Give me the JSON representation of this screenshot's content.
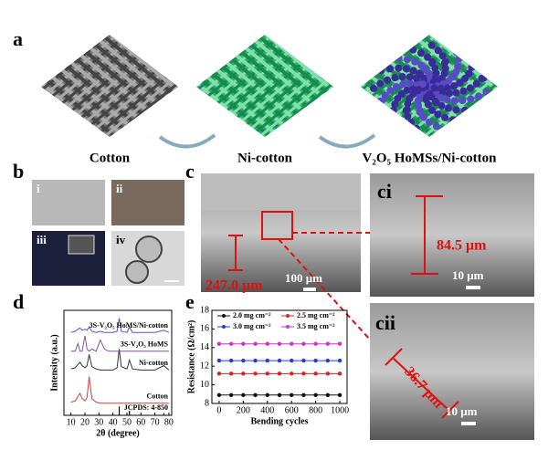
{
  "figure": {
    "a": {
      "label": "a",
      "captions": [
        "Cotton",
        "Ni-cotton",
        "V₂O₅ HoMSs/Ni-cotton"
      ]
    },
    "b": {
      "label": "b",
      "sublabels": [
        "i",
        "ii",
        "iii",
        "iv"
      ]
    },
    "c": {
      "label": "c",
      "thickness": "247.0 μm",
      "scale": "100 μm"
    },
    "ci": {
      "label": "ci",
      "thickness": "84.5 μm",
      "scale": "10 μm"
    },
    "cii": {
      "label": "cii",
      "thickness": "36.7 μm",
      "scale": "10 μm"
    },
    "d": {
      "label": "d"
    },
    "e": {
      "label": "e"
    }
  },
  "chart_data": [
    {
      "type": "line",
      "x_label": "2θ (degree)",
      "y_label": "Intensity (a.u.)",
      "x": [
        10,
        13,
        15,
        16.5,
        18,
        20,
        21.5,
        23,
        25,
        28,
        31,
        34,
        37,
        40,
        43,
        44.5,
        46,
        50,
        51.8,
        54,
        60,
        70,
        76.4,
        80
      ],
      "xlim": [
        5,
        82
      ],
      "xticks": [
        10,
        20,
        30,
        40,
        50,
        60,
        70,
        80
      ],
      "ylim": [
        0,
        95
      ],
      "series": [
        {
          "name": "Cotton",
          "color": "#d04040",
          "values": [
            12,
            13,
            17,
            20,
            15,
            13,
            16,
            35,
            15,
            12,
            11,
            11,
            11,
            11,
            11,
            11,
            11,
            11,
            11,
            11,
            11,
            11,
            11,
            11
          ]
        },
        {
          "name": "Ni-cotton",
          "color": "#333333",
          "values": [
            42,
            43,
            46,
            48,
            45,
            43,
            45,
            55,
            44,
            42,
            41,
            41,
            41,
            41,
            43,
            60,
            44,
            42,
            50,
            42,
            41,
            41,
            45,
            41
          ]
        },
        {
          "name": "3S-V₂O₅ HoMS",
          "color": "#8a4fa0",
          "values": [
            58,
            58,
            65,
            58,
            58,
            72,
            60,
            58,
            60,
            58,
            68,
            60,
            58,
            58,
            58,
            58,
            58,
            58,
            58,
            58,
            58,
            58,
            58,
            58
          ]
        },
        {
          "name": "3S-V₂O₅ HoMS/Ni-cotton",
          "color": "#4a5ac8",
          "values": [
            75,
            76,
            78,
            79,
            77,
            78,
            77,
            80,
            76,
            75,
            76,
            75,
            75,
            75,
            76,
            88,
            76,
            75,
            80,
            75,
            75,
            75,
            77,
            75
          ]
        }
      ],
      "reference": {
        "name": "JCPDS: 4-850",
        "color": "#000000",
        "x": [
          44.5,
          51.8,
          76.4
        ],
        "values": [
          8,
          4,
          2
        ]
      }
    },
    {
      "type": "line",
      "x_label": "Bending cycles",
      "y_label": "Resistance (Ω/cm²)",
      "x": [
        0,
        100,
        200,
        300,
        400,
        500,
        600,
        700,
        800,
        900,
        1000
      ],
      "xlim": [
        -60,
        1060
      ],
      "xticks": [
        0,
        200,
        400,
        600,
        800,
        1000
      ],
      "ylim": [
        8,
        18
      ],
      "yticks": [
        8,
        10,
        12,
        14,
        16,
        18
      ],
      "series": [
        {
          "name": "2.0 mg cm⁻²",
          "color": "#111111",
          "values": [
            8.9,
            8.9,
            8.9,
            8.9,
            8.9,
            8.9,
            8.9,
            8.9,
            8.9,
            8.9,
            8.9
          ]
        },
        {
          "name": "2.5 mg cm⁻²",
          "color": "#e02020",
          "values": [
            11.2,
            11.2,
            11.2,
            11.2,
            11.2,
            11.2,
            11.2,
            11.2,
            11.2,
            11.2,
            11.2
          ]
        },
        {
          "name": "3.0 mg cm⁻²",
          "color": "#2040d0",
          "values": [
            12.6,
            12.6,
            12.6,
            12.6,
            12.6,
            12.6,
            12.6,
            12.6,
            12.6,
            12.6,
            12.6
          ]
        },
        {
          "name": "3.5 mg cm⁻²",
          "color": "#d030d0",
          "values": [
            14.4,
            14.4,
            14.4,
            14.4,
            14.4,
            14.4,
            14.4,
            14.4,
            14.4,
            14.4,
            14.4
          ]
        }
      ]
    }
  ]
}
